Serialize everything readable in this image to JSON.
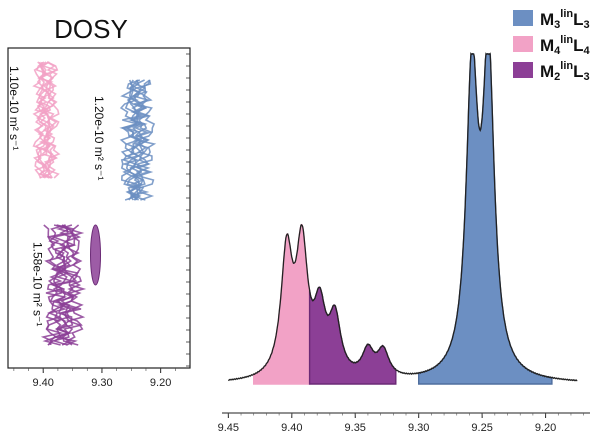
{
  "chart_data": [
    {
      "type": "contour",
      "title": "DOSY",
      "x_ticks": [
        9.4,
        9.3,
        9.2
      ],
      "x_tick_labels": [
        "9.40",
        "9.30",
        "9.20"
      ],
      "xlim": [
        9.46,
        9.15
      ],
      "clusters": [
        {
          "name": "M4linL4",
          "color": "#f2a2c6",
          "x_center": 9.395,
          "label": "1.10e-10 m² s⁻¹"
        },
        {
          "name": "M3linL3",
          "color": "#6c8fc2",
          "x_center": 9.24,
          "label": "1.20e-10 m² s⁻¹"
        },
        {
          "name": "M2linL3",
          "color": "#8c3f96",
          "x_center": 9.345,
          "label": "1.58e-10 m² s⁻¹"
        }
      ]
    },
    {
      "type": "area",
      "x_ticks": [
        9.45,
        9.4,
        9.35,
        9.3,
        9.25,
        9.2
      ],
      "x_tick_labels": [
        "9.45",
        "9.40",
        "9.35",
        "9.30",
        "9.25",
        "9.20"
      ],
      "xlim": [
        9.455,
        9.165
      ],
      "peaks": [
        {
          "series": "M4linL4",
          "x": 9.404,
          "height": 0.39
        },
        {
          "series": "M4linL4",
          "x": 9.392,
          "height": 0.4
        },
        {
          "series": "M2linL3",
          "x": 9.378,
          "height": 0.2
        },
        {
          "series": "M2linL3",
          "x": 9.366,
          "height": 0.18
        },
        {
          "series": "M2linL3",
          "x": 9.34,
          "height": 0.085
        },
        {
          "series": "M2linL3",
          "x": 9.328,
          "height": 0.085
        },
        {
          "series": "M3linL3",
          "x": 9.258,
          "height": 0.94
        },
        {
          "series": "M3linL3",
          "x": 9.245,
          "height": 0.99
        }
      ],
      "regions": [
        {
          "series": "M4linL4",
          "from": 9.43,
          "to": 9.386
        },
        {
          "series": "M2linL3",
          "from": 9.386,
          "to": 9.318
        },
        {
          "series": "M3linL3",
          "from": 9.3,
          "to": 9.195
        }
      ]
    }
  ],
  "legend": {
    "placement": "top-right",
    "entries": [
      {
        "key": "M3linL3",
        "main": "M",
        "sub": "3",
        "sup": "lin",
        "tail": "L",
        "tailsub": "3",
        "color": "#6c8fc2"
      },
      {
        "key": "M4linL4",
        "main": "M",
        "sub": "4",
        "sup": "lin",
        "tail": "L",
        "tailsub": "4",
        "color": "#f2a2c6"
      },
      {
        "key": "M2linL3",
        "main": "M",
        "sub": "2",
        "sup": "lin",
        "tail": "L",
        "tailsub": "3",
        "color": "#8c3f96"
      }
    ]
  },
  "colors": {
    "M3linL3": "#6c8fc2",
    "M4linL4": "#f2a2c6",
    "M2linL3": "#8c3f96",
    "M3linL3_edge": "#4f6e9e",
    "M2linL3_edge": "#6b2a76",
    "baseline": "#222222"
  }
}
